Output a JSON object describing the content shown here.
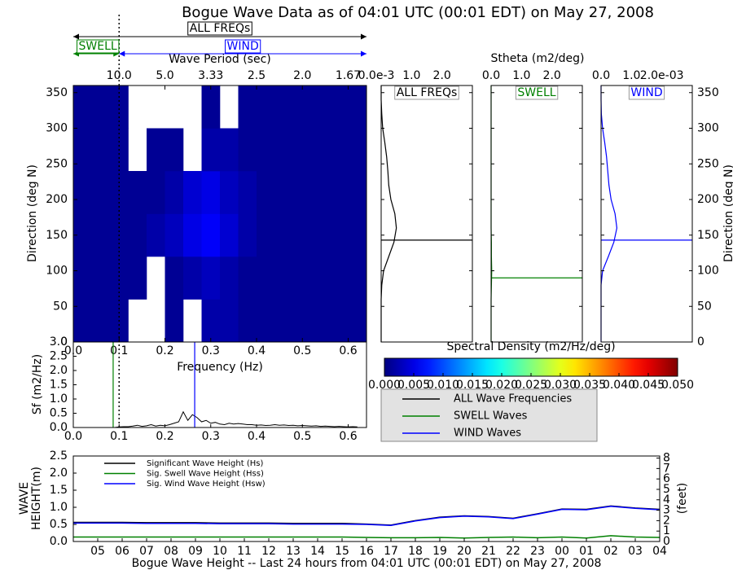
{
  "chart_data": [
    {
      "type": "heatmap",
      "title": "Bogue Wave Data as of 04:01 UTC (00:01 EDT) on May 27, 2008",
      "xlabel": "Frequency (Hz)",
      "x2label": "Wave Period (sec)",
      "ylabel": "Direction (deg N)",
      "xlim": [
        0,
        0.64
      ],
      "ylim": [
        0,
        360
      ],
      "xticks": [
        {
          "value": 0,
          "label": "0.0"
        },
        0.1,
        0.2,
        0.3,
        0.4,
        0.5,
        0.6
      ],
      "x2ticks": [
        {
          "value": 0.1,
          "label": "10.0"
        },
        {
          "value": 0.2,
          "label": "5.0"
        },
        {
          "value": 0.3,
          "label": "3.33"
        },
        {
          "value": 0.4,
          "label": "2.5"
        },
        {
          "value": 0.5,
          "label": "2.0"
        },
        {
          "value": 0.6,
          "label": "1.67"
        }
      ],
      "yticks": [
        0,
        50,
        100,
        150,
        200,
        250,
        300,
        350
      ],
      "xbins": [
        0,
        0.04,
        0.08,
        0.12,
        0.16,
        0.2,
        0.24,
        0.28,
        0.32,
        0.36,
        0.4,
        0.44,
        0.48,
        0.52,
        0.56,
        0.6,
        0.64
      ],
      "ybins": [
        0,
        60,
        120,
        180,
        240,
        300,
        360
      ],
      "values": [
        [
          0.001,
          0.001,
          0.001,
          null,
          null,
          0.001,
          null,
          0.002,
          0.002,
          0.001,
          0.001,
          0.001,
          0.001,
          0.001,
          0.001,
          0.001
        ],
        [
          0.001,
          0.001,
          0.001,
          0.001,
          null,
          0.001,
          0.002,
          0.003,
          0.002,
          0.001,
          0.001,
          0.001,
          0.001,
          0.001,
          0.001,
          0.001
        ],
        [
          0.001,
          0.001,
          0.001,
          0.001,
          0.002,
          0.003,
          0.005,
          0.006,
          0.004,
          0.002,
          0.001,
          0.001,
          0.001,
          0.001,
          0.001,
          0.001
        ],
        [
          0.001,
          0.001,
          0.001,
          0.001,
          0.001,
          0.002,
          0.004,
          0.005,
          0.003,
          0.002,
          0.001,
          0.001,
          0.001,
          0.001,
          0.001,
          0.001
        ],
        [
          0.001,
          0.001,
          0.001,
          null,
          0.001,
          0.001,
          null,
          0.002,
          0.002,
          0.001,
          0.001,
          0.001,
          0.001,
          0.001,
          0.001,
          0.001
        ],
        [
          0.001,
          0.001,
          0.001,
          null,
          null,
          null,
          null,
          0.001,
          null,
          0.001,
          0.001,
          0.001,
          0.001,
          0.001,
          0.001,
          0.001
        ]
      ],
      "separation_frequency": 0.1,
      "bands": [
        {
          "label": "ALL FREQs",
          "color": "#000000",
          "range": [
            0,
            0.64
          ]
        },
        {
          "label": "SWELL",
          "color": "#008000",
          "range": [
            0,
            0.1
          ]
        },
        {
          "label": "WIND",
          "color": "#0000ff",
          "range": [
            0.1,
            0.64
          ]
        }
      ]
    },
    {
      "type": "profile",
      "xlabel": "Stheta (m2/deg)",
      "ylabel": "Direction (deg N)",
      "ylim": [
        0,
        360
      ],
      "yticks": [
        0,
        50,
        100,
        150,
        200,
        250,
        300,
        350
      ],
      "panels": [
        {
          "label": "ALL FREQs",
          "color": "#000000",
          "xlim": [
            0,
            3
          ],
          "xticks": [
            {
              "value": 0,
              "label": "0.0e-3"
            },
            {
              "value": 1,
              "label": "1.0"
            },
            {
              "value": 2,
              "label": "2.0"
            }
          ],
          "directions": [
            0,
            20,
            40,
            60,
            80,
            100,
            120,
            140,
            160,
            180,
            200,
            220,
            240,
            260,
            280,
            300,
            320,
            340,
            360
          ],
          "values": [
            0,
            0,
            0,
            0,
            0.02,
            0.08,
            0.25,
            0.42,
            0.5,
            0.45,
            0.32,
            0.25,
            0.22,
            0.18,
            0.12,
            0.05,
            0.02,
            0,
            0
          ],
          "peak": 143
        },
        {
          "label": "SWELL",
          "color": "#008000",
          "xlim": [
            0,
            3
          ],
          "xticks": [
            {
              "value": 0,
              "label": "0.0"
            },
            {
              "value": 1,
              "label": "1.0"
            },
            {
              "value": 2,
              "label": "2.0"
            }
          ],
          "directions": [
            0,
            20,
            40,
            60,
            80,
            100,
            120,
            140,
            160,
            180,
            200,
            220,
            240,
            260,
            280,
            300,
            320,
            340,
            360
          ],
          "values": [
            0,
            0,
            0,
            0,
            0.01,
            0.02,
            0.01,
            0.01,
            0,
            0,
            0,
            0,
            0,
            0,
            0,
            0,
            0,
            0,
            0
          ],
          "peak": 90
        },
        {
          "label": "WIND",
          "color": "#0000ff",
          "xlim": [
            0,
            3
          ],
          "xticks": [
            {
              "value": 0,
              "label": "0.0"
            },
            {
              "value": 1,
              "label": "1.0"
            },
            {
              "value": 2,
              "label": "2.0e-03"
            }
          ],
          "directions": [
            0,
            20,
            40,
            60,
            80,
            100,
            120,
            140,
            160,
            180,
            200,
            220,
            240,
            260,
            280,
            300,
            320,
            340,
            360
          ],
          "values": [
            0,
            0,
            0,
            0,
            0,
            0.05,
            0.24,
            0.42,
            0.52,
            0.46,
            0.33,
            0.26,
            0.22,
            0.18,
            0.12,
            0.05,
            0.01,
            0,
            0
          ],
          "peak": 143
        }
      ]
    },
    {
      "type": "colorbar",
      "title": "Spectral Density (m2/Hz/deg)",
      "colormap": "jet",
      "clim": [
        0,
        0.05
      ],
      "ticks": [
        {
          "value": 0,
          "label": "0.000"
        },
        0.005,
        {
          "value": 0.01,
          "label": "0.010"
        },
        0.015,
        {
          "value": 0.02,
          "label": "0.020"
        },
        0.025,
        {
          "value": 0.03,
          "label": "0.030"
        },
        0.035,
        {
          "value": 0.04,
          "label": "0.040"
        },
        0.045,
        {
          "value": 0.05,
          "label": "0.050"
        }
      ]
    },
    {
      "type": "line",
      "ylabel": "Sf (m2/Hz)",
      "xlim": [
        0,
        0.64
      ],
      "ylim": [
        0,
        3
      ],
      "xticks": [
        {
          "value": 0,
          "label": "0.0"
        },
        0.1,
        0.2,
        0.3,
        0.4,
        0.5,
        0.6
      ],
      "yticks": [
        {
          "value": 0,
          "label": "0.0"
        },
        0.5,
        {
          "value": 1,
          "label": "1.0"
        },
        1.5,
        {
          "value": 2,
          "label": "2.0"
        },
        2.5,
        {
          "value": 3,
          "label": "3.0"
        }
      ],
      "series": [
        {
          "name": "ALL Wave Frequencies",
          "color": "#000000",
          "x": [
            0.09,
            0.1,
            0.11,
            0.12,
            0.13,
            0.14,
            0.15,
            0.16,
            0.17,
            0.18,
            0.19,
            0.2,
            0.21,
            0.22,
            0.23,
            0.24,
            0.25,
            0.26,
            0.27,
            0.28,
            0.29,
            0.3,
            0.31,
            0.32,
            0.33,
            0.34,
            0.35,
            0.36,
            0.37,
            0.38,
            0.39,
            0.4,
            0.41,
            0.42,
            0.43,
            0.44,
            0.45,
            0.46,
            0.47,
            0.48,
            0.49,
            0.5,
            0.51,
            0.52,
            0.53,
            0.54,
            0.55,
            0.56,
            0.57,
            0.58,
            0.59,
            0.6,
            0.61,
            0.62
          ],
          "values": [
            0,
            0.02,
            0.03,
            0.03,
            0.05,
            0.08,
            0.04,
            0.06,
            0.1,
            0.05,
            0.08,
            0.06,
            0.1,
            0.15,
            0.2,
            0.55,
            0.25,
            0.45,
            0.35,
            0.2,
            0.25,
            0.15,
            0.18,
            0.12,
            0.1,
            0.15,
            0.12,
            0.14,
            0.12,
            0.1,
            0.1,
            0.08,
            0.09,
            0.07,
            0.08,
            0.1,
            0.08,
            0.09,
            0.07,
            0.08,
            0.06,
            0.07,
            0.06,
            0.05,
            0.06,
            0.04,
            0.05,
            0.04,
            0.03,
            0.04,
            0.03,
            0.02,
            0.03,
            0.02
          ]
        },
        {
          "name": "SWELL Waves",
          "color": "#008000",
          "peak": 0.087
        },
        {
          "name": "WIND Waves",
          "color": "#0000ff",
          "peak": 0.265
        }
      ]
    },
    {
      "type": "line",
      "ylabel": [
        "WAVE",
        "HEIGHT(m)"
      ],
      "y2label": "(feet)",
      "xlabel": "Bogue Wave Height -- Last 24 hours from 04:01 UTC (00:01 EDT) on May 27, 2008",
      "categories": [
        null,
        "05",
        "06",
        "07",
        "08",
        "09",
        "10",
        "11",
        "12",
        "13",
        "14",
        "15",
        "16",
        "17",
        "18",
        "19",
        "20",
        "21",
        "22",
        "23",
        "00",
        "01",
        "02",
        "03",
        "04"
      ],
      "ylim": [
        0,
        2.5
      ],
      "yticks": [
        {
          "value": 0,
          "label": "0.0"
        },
        0.5,
        {
          "value": 1,
          "label": "1.0"
        },
        1.5,
        {
          "value": 2,
          "label": "2.0"
        },
        2.5
      ],
      "y2lim": [
        0,
        8.2
      ],
      "y2ticks": [
        0,
        1,
        2,
        3,
        4,
        5,
        6,
        7,
        8
      ],
      "series": [
        {
          "name": "Significant Wave Height (Hs)",
          "color": "#000000",
          "values": [
            0.56,
            0.56,
            0.56,
            0.55,
            0.55,
            0.55,
            0.54,
            0.54,
            0.54,
            0.53,
            0.53,
            0.53,
            0.51,
            0.48,
            0.61,
            0.71,
            0.75,
            0.73,
            0.68,
            0.81,
            0.95,
            0.94,
            1.04,
            0.98,
            0.94
          ]
        },
        {
          "name": "Sig. Swell Wave Height (Hss)",
          "color": "#008000",
          "values": [
            0.13,
            0.13,
            0.13,
            0.13,
            0.13,
            0.13,
            0.13,
            0.13,
            0.13,
            0.13,
            0.13,
            0.13,
            0.12,
            0.11,
            0.11,
            0.12,
            0.1,
            0.12,
            0.13,
            0.11,
            0.13,
            0.1,
            0.17,
            0.13,
            0.12
          ]
        },
        {
          "name": "Sig. Wind Wave Height (Hsw)",
          "color": "#0000ff",
          "values": [
            0.54,
            0.54,
            0.54,
            0.53,
            0.53,
            0.53,
            0.52,
            0.52,
            0.52,
            0.51,
            0.51,
            0.51,
            0.5,
            0.47,
            0.6,
            0.7,
            0.74,
            0.72,
            0.67,
            0.8,
            0.94,
            0.93,
            1.03,
            0.97,
            0.93
          ]
        }
      ]
    }
  ]
}
